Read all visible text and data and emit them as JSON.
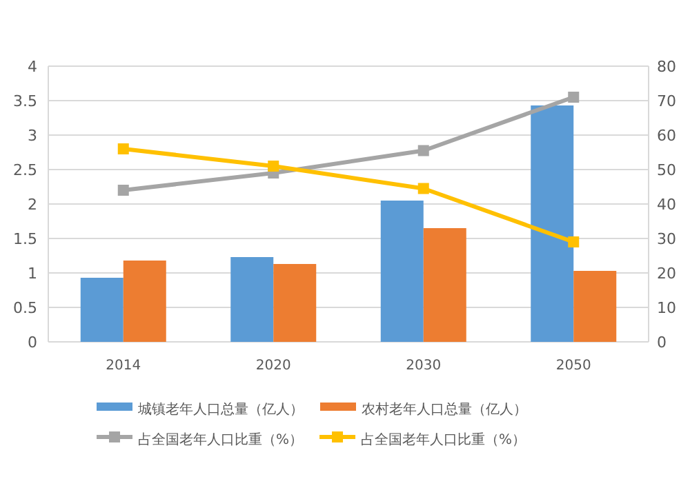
{
  "chart_data": {
    "type": "bar",
    "categories": [
      "2014",
      "2020",
      "2030",
      "2050"
    ],
    "ylim": [
      0,
      4
    ],
    "yticks": [
      0,
      0.5,
      1,
      1.5,
      2,
      2.5,
      3,
      3.5,
      4
    ],
    "y2lim": [
      0,
      80
    ],
    "y2ticks": [
      0,
      10,
      20,
      30,
      40,
      50,
      60,
      70,
      80
    ],
    "grid": "y",
    "legend": "bottom",
    "marker": "square",
    "line_style": "solid",
    "series": [
      {
        "name": "城镇老年人口总量（亿人）",
        "color": "#5b9bd5",
        "values": [
          0.93,
          1.23,
          2.05,
          3.43
        ]
      },
      {
        "name": "农村老年人口总量（亿人）",
        "color": "#ed7d31",
        "values": [
          1.18,
          1.13,
          1.65,
          1.03
        ]
      },
      {
        "name": "占全国老年人口比重（%）",
        "type": "line",
        "axis": "y2",
        "color": "#a5a5a5",
        "values": [
          44,
          49,
          55.5,
          71
        ]
      },
      {
        "name": "占全国老年人口比重（%）",
        "type": "line",
        "axis": "y2",
        "color": "#ffc000",
        "values": [
          56,
          51,
          44.5,
          29
        ]
      }
    ]
  }
}
